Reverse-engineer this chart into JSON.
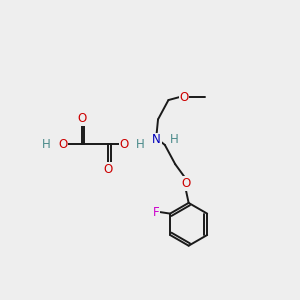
{
  "bg_color": "#eeeeee",
  "bond_color": "#1a1a1a",
  "atom_colors": {
    "O": "#cc0000",
    "N": "#0000bb",
    "F": "#cc00cc",
    "H": "#4a8a8a",
    "C": "#1a1a1a"
  },
  "font_size": 8.5,
  "line_width": 1.4,
  "figsize": [
    3.0,
    3.0
  ],
  "dpi": 100
}
